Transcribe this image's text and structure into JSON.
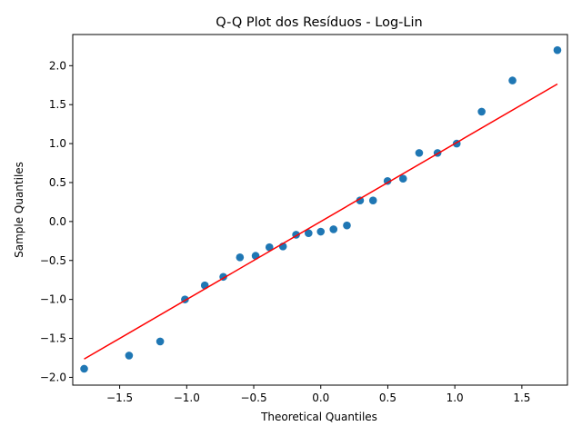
{
  "chart_data": {
    "type": "scatter",
    "title": "Q-Q Plot dos Resíduos - Log-Lin",
    "xlabel": "Theoretical Quantiles",
    "ylabel": "Sample Quantiles",
    "xlim": [
      -1.85,
      1.84
    ],
    "ylim": [
      -2.1,
      2.4
    ],
    "xticks": [
      -1.5,
      -1.0,
      -0.5,
      0.0,
      0.5,
      1.0,
      1.5
    ],
    "xtick_labels": [
      "−1.5",
      "−1.0",
      "−0.5",
      "0.0",
      "0.5",
      "1.0",
      "1.5"
    ],
    "yticks": [
      -2.0,
      -1.5,
      -1.0,
      -0.5,
      0.0,
      0.5,
      1.0,
      1.5,
      2.0
    ],
    "ytick_labels": [
      "−2.0",
      "−1.5",
      "−1.0",
      "−0.5",
      "0.0",
      "0.5",
      "1.0",
      "1.5",
      "2.0"
    ],
    "grid": false,
    "series": [
      {
        "type": "scatter",
        "color": "#1f77b4",
        "x": [
          -1.765,
          -1.43,
          -1.198,
          -1.013,
          -0.865,
          -0.727,
          -0.603,
          -0.486,
          -0.383,
          -0.282,
          -0.184,
          -0.091,
          0.0,
          0.095,
          0.195,
          0.293,
          0.39,
          0.498,
          0.614,
          0.734,
          0.871,
          1.014,
          1.2,
          1.43,
          1.765
        ],
        "y": [
          -1.89,
          -1.72,
          -1.54,
          -1.0,
          -0.82,
          -0.71,
          -0.46,
          -0.44,
          -0.33,
          -0.32,
          -0.17,
          -0.15,
          -0.13,
          -0.1,
          -0.05,
          0.27,
          0.27,
          0.52,
          0.55,
          0.88,
          0.88,
          1.0,
          1.41,
          1.81,
          2.2
        ]
      },
      {
        "type": "line",
        "color": "#ff0000",
        "x": [
          -1.765,
          1.765
        ],
        "y": [
          -1.765,
          1.765
        ]
      }
    ]
  }
}
